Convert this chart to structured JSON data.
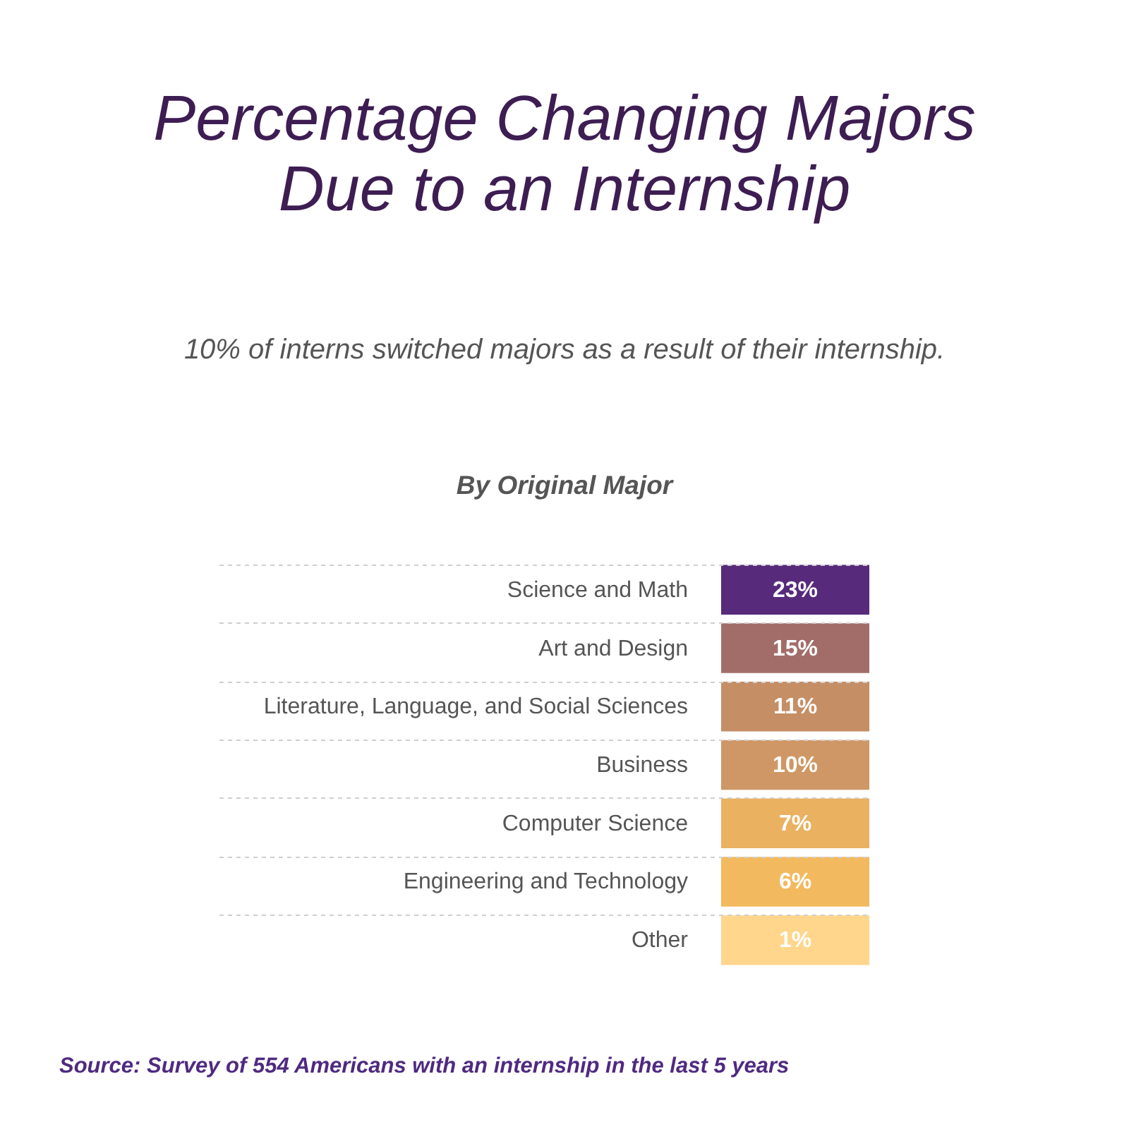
{
  "chart_data": {
    "type": "heatmap",
    "title": "Percentage Changing Majors Due to an Internship",
    "subtitle": "10% of interns switched majors as a result of their internship.",
    "ylabel": "By Original Major",
    "annotations": [
      "Source: Survey of 554 Americans with an internship in the last 5 years"
    ],
    "categories": [
      null
    ],
    "y_categories": [
      "Science and Math",
      "Art and Design",
      "Literature, Language, and Social Sciences",
      "Business",
      "Computer Science",
      "Engineering and Technology",
      "Other"
    ],
    "cells": [
      [
        23
      ],
      [
        15
      ],
      [
        11
      ],
      [
        10
      ],
      [
        7
      ],
      [
        6
      ],
      [
        1
      ]
    ],
    "cell_labels": [
      [
        "23%"
      ],
      [
        "15%"
      ],
      [
        "11%"
      ],
      [
        "10%"
      ],
      [
        "7%"
      ],
      [
        "6%"
      ],
      [
        "1%"
      ]
    ],
    "grid": "y",
    "tick_labels": "y"
  }
}
